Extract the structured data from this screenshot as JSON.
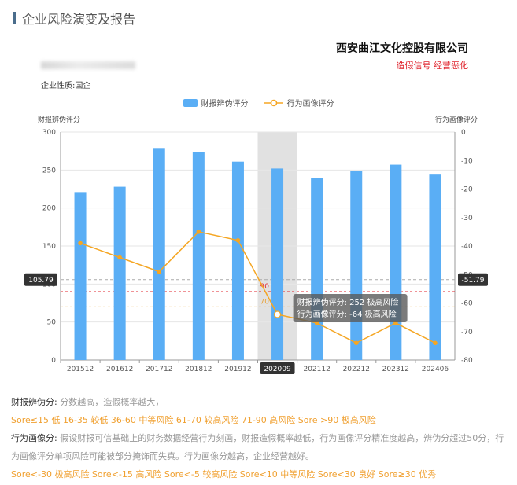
{
  "page": {
    "title": "企业风险演变及报告",
    "company": "西安曲江文化控股有限公司",
    "signal": "造假信号 经营恶化",
    "nature": "企业性质:国企"
  },
  "colors": {
    "bar": "#5aaef5",
    "line": "#f5a623",
    "highlight": "#dcdcdc",
    "ref_red": "#e0242d",
    "ref_orange": "#e8a33c"
  },
  "chart_data": {
    "type": "bar",
    "categories": [
      "201512",
      "201612",
      "201712",
      "201812",
      "201912",
      "202009",
      "202112",
      "202212",
      "202312",
      "202406"
    ],
    "series": [
      {
        "name": "财报辨伪评分",
        "type": "bar",
        "axis": "left",
        "values": [
          221,
          228,
          279,
          274,
          261,
          252,
          240,
          249,
          257,
          245
        ]
      },
      {
        "name": "行为画像评分",
        "type": "line",
        "axis": "right",
        "values": [
          -39,
          -44,
          -49,
          -35,
          -38,
          -64,
          -67,
          -74,
          -67,
          -74
        ]
      }
    ],
    "ylabel_left": "财报辨伪评分",
    "ylabel_right": "行为画像评分",
    "ylim_left": [
      0,
      300
    ],
    "ylim_right": [
      -80,
      0
    ],
    "yticks_left": [
      "0",
      "50",
      "100",
      "150",
      "200",
      "250",
      "300"
    ],
    "yticks_right": [
      "0",
      "-10",
      "-20",
      "-30",
      "-40",
      "-50",
      "-60",
      "-70",
      "-80"
    ],
    "highlight_index": 5,
    "crosshair": {
      "left_value": 105.79,
      "left_label": "105.79",
      "right_label": "-51.79"
    },
    "reference_lines": [
      {
        "label": "90",
        "value": 90,
        "color": "red"
      },
      {
        "label": "70",
        "value": 70,
        "color": "orange"
      }
    ],
    "tooltip": [
      "财报辨伪评分: 252 极高风险",
      "行为画像评分: -64 极高风险"
    ],
    "legend": [
      "财报辨伪评分",
      "行为画像评分"
    ],
    "legend_position": "top-center"
  },
  "notes": {
    "fin_label": "财报辨伪分:",
    "fin_desc": "分数越高，造假概率越大，",
    "fin_scale": "Sore≤15 低 16-35 较低 36-60 中等风险 61-70 较高风险 71-90 高风险 Sore >90 极高风险",
    "beh_label": "行为画像分:",
    "beh_desc": "假设财报可信基础上的财务数据经营行为刻画，财报造假概率越低，行为画像评分精准度越高，辨伪分超过50分，行为画像评分单项风险可能被部分掩饰而失真。行为画像分越高，企业经营越好。",
    "beh_scale": "Sore<-30 极高风险 Sore<-15 高风险 Sore<-5 较高风险 Sore<10 中等风险 Sore<30 良好 Sore≥30 优秀"
  }
}
